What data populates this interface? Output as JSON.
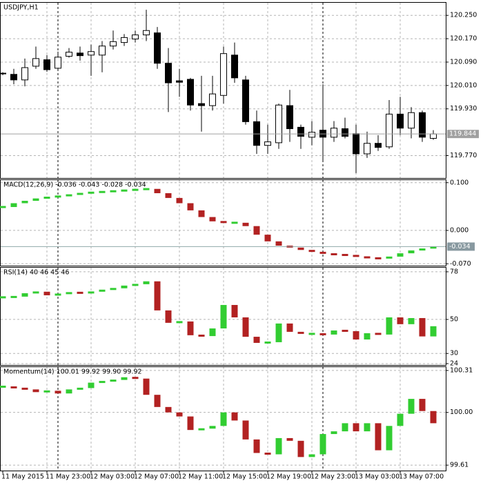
{
  "chart_data": [
    {
      "type": "candlestick",
      "title": "USDJPY,H1",
      "categories": [
        "11 May 2015",
        null,
        null,
        null,
        "11 May 23:00",
        null,
        null,
        null,
        "12 May 03:00",
        null,
        null,
        null,
        "12 May 07:00",
        null,
        null,
        null,
        "12 May 11:00",
        null,
        null,
        null,
        "12 May 15:00",
        null,
        null,
        null,
        "12 May 19:00",
        null,
        null,
        null,
        "12 May 23:00",
        null,
        null,
        null,
        "13 May 03:00",
        null,
        null,
        null,
        "13 May 07:00",
        null,
        null,
        null
      ],
      "open": [
        120.052,
        120.048,
        120.029,
        120.076,
        120.098,
        120.069,
        120.11,
        120.121,
        120.114,
        120.114,
        120.145,
        120.157,
        120.169,
        120.183,
        120.19,
        120.086,
        120.026,
        120.031,
        119.948,
        119.941,
        119.976,
        120.114,
        120.029,
        119.886,
        119.805,
        119.814,
        119.941,
        119.867,
        119.833,
        119.857,
        119.833,
        119.862,
        119.845,
        119.776,
        119.812,
        119.8,
        119.912,
        119.864,
        119.917,
        119.829
      ],
      "high": [
        120.055,
        120.067,
        120.102,
        120.143,
        120.114,
        120.126,
        120.138,
        120.143,
        120.15,
        120.162,
        120.198,
        120.186,
        120.198,
        120.269,
        120.21,
        120.138,
        120.067,
        120.036,
        120.043,
        120.043,
        120.143,
        120.157,
        120.043,
        119.924,
        119.876,
        119.948,
        119.995,
        119.876,
        119.888,
        120.014,
        119.888,
        119.9,
        119.876,
        119.852,
        119.84,
        119.96,
        119.971,
        119.936,
        119.924,
        119.857
      ],
      "low": [
        120.045,
        120.014,
        120.007,
        120.067,
        120.057,
        120.064,
        120.105,
        120.095,
        120.043,
        120.055,
        120.133,
        120.145,
        120.157,
        120.162,
        120.067,
        119.919,
        119.971,
        119.924,
        119.852,
        119.924,
        119.948,
        120.019,
        119.876,
        119.776,
        119.776,
        119.793,
        119.817,
        119.793,
        119.805,
        119.752,
        119.817,
        119.829,
        119.71,
        119.762,
        119.786,
        119.793,
        119.84,
        119.829,
        119.817,
        119.824
      ],
      "close": [
        120.05,
        120.029,
        120.071,
        120.102,
        120.064,
        120.107,
        120.124,
        120.112,
        120.126,
        120.145,
        120.16,
        120.174,
        120.183,
        120.198,
        120.086,
        120.019,
        120.021,
        119.943,
        119.941,
        119.981,
        120.119,
        120.036,
        119.886,
        119.805,
        119.817,
        119.943,
        119.862,
        119.836,
        119.85,
        119.833,
        119.864,
        119.836,
        119.776,
        119.812,
        119.798,
        119.912,
        119.864,
        119.917,
        119.833,
        119.844
      ],
      "ylim": [
        119.698,
        120.293
      ],
      "yticks": [
        {
          "value": 120.25,
          "label": "120.250"
        },
        {
          "value": 120.17,
          "label": "120.170"
        },
        {
          "value": 120.09,
          "label": "120.090"
        },
        {
          "value": 120.01,
          "label": "120.010"
        },
        {
          "value": 119.93,
          "label": "119.930"
        },
        {
          "value": 119.77,
          "label": "119.770"
        }
      ],
      "grid": true,
      "up_color": "#ffffff",
      "down_color": "#000000"
    },
    {
      "type": "indicator-bars",
      "title": "MACD(12,26,9) -0.036 -0.043 -0.028 -0.034",
      "values": [
        0.049,
        0.057,
        0.062,
        0.067,
        0.07,
        0.072,
        0.075,
        0.078,
        0.08,
        0.081,
        0.083,
        0.084,
        0.086,
        0.087,
        0.078,
        0.068,
        0.057,
        0.042,
        0.028,
        0.019,
        0.016,
        0.016,
        0.009,
        -0.009,
        -0.023,
        -0.032,
        -0.036,
        -0.041,
        -0.045,
        -0.049,
        -0.051,
        -0.052,
        -0.055,
        -0.058,
        -0.059,
        -0.055,
        -0.048,
        -0.042,
        -0.038,
        -0.034
      ],
      "ylim": [
        -0.071,
        0.104
      ],
      "yticks": [
        {
          "value": 0.1,
          "label": "0.100"
        },
        {
          "value": 0,
          "label": "0.000"
        },
        {
          "value": -0.07,
          "label": "-0.070"
        }
      ],
      "grid": true,
      "up_color": "#32cd32",
      "down_color": "#b22222"
    },
    {
      "type": "indicator-bars",
      "title": "RSI(14) 40 46 45 46",
      "values": [
        63.0,
        63.4,
        65.4,
        66.3,
        64.2,
        65.0,
        65.9,
        65.4,
        66.3,
        67.5,
        68.3,
        69.9,
        70.7,
        72.4,
        55.3,
        48.0,
        48.8,
        40.7,
        40.2,
        44.7,
        58.5,
        51.2,
        39.8,
        36.2,
        36.6,
        47.6,
        42.7,
        41.5,
        41.5,
        41.1,
        43.5,
        43.1,
        38.2,
        41.9,
        41.1,
        51.2,
        47.2,
        50.8,
        40,
        46
      ],
      "ylim": [
        24,
        80
      ],
      "yticks": [
        78,
        50,
        30,
        24
      ],
      "grid": true,
      "up_color": "#32cd32",
      "down_color": "#b22222"
    },
    {
      "type": "indicator-bars",
      "title": "Momentum(14) 100.01 99.92 99.90 99.92",
      "values": [
        100.19,
        100.18,
        100.17,
        100.15,
        100.16,
        100.14,
        100.17,
        100.18,
        100.22,
        100.23,
        100.24,
        100.26,
        100.25,
        100.13,
        100.04,
        100.0,
        99.97,
        99.87,
        99.88,
        99.9,
        100.0,
        99.94,
        99.8,
        99.7,
        99.69,
        99.81,
        99.79,
        99.67,
        99.69,
        99.84,
        99.86,
        99.92,
        99.86,
        99.92,
        99.72,
        99.9,
        99.99,
        100.1,
        100.01,
        99.92
      ],
      "ylim": [
        99.58,
        100.33
      ],
      "yticks": [
        100.31,
        {
          "value": 100,
          "label": "100.00"
        },
        99.61
      ],
      "grid": true,
      "up_color": "#32cd32",
      "down_color": "#b22222"
    }
  ]
}
